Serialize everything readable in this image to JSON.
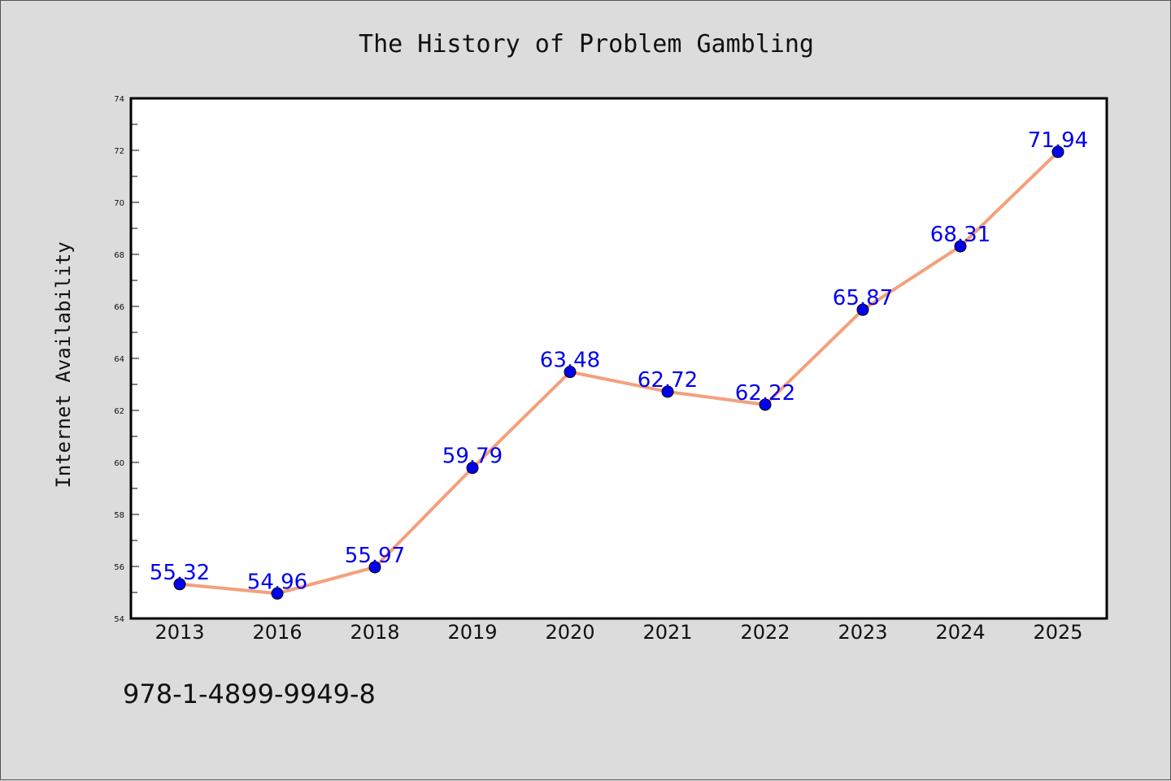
{
  "chart_data": {
    "type": "line",
    "title": "The History of Problem Gambling",
    "ylabel": "Internet Availability",
    "xlabel": "",
    "categories": [
      "2013",
      "2016",
      "2018",
      "2019",
      "2020",
      "2021",
      "2022",
      "2023",
      "2024",
      "2025"
    ],
    "values": [
      55.32,
      54.96,
      55.97,
      59.79,
      63.48,
      62.72,
      62.22,
      65.87,
      68.31,
      71.94
    ],
    "data_labels": [
      "55.32",
      "54.96",
      "55.97",
      "59.79",
      "63.48",
      "62.72",
      "62.22",
      "65.87",
      "68.31",
      "71.94"
    ],
    "ylim": [
      54,
      74
    ],
    "yticks": [
      54,
      56,
      58,
      60,
      62,
      64,
      66,
      68,
      70,
      72,
      74
    ],
    "grid": false,
    "legend": "none",
    "colors": {
      "line": "#f4a07c",
      "marker": "#0000ee",
      "labels": "#0000ee",
      "background": "#dcdcdc",
      "plot_background": "#ffffff"
    }
  },
  "footer": {
    "isbn": "978-1-4899-9949-8"
  }
}
